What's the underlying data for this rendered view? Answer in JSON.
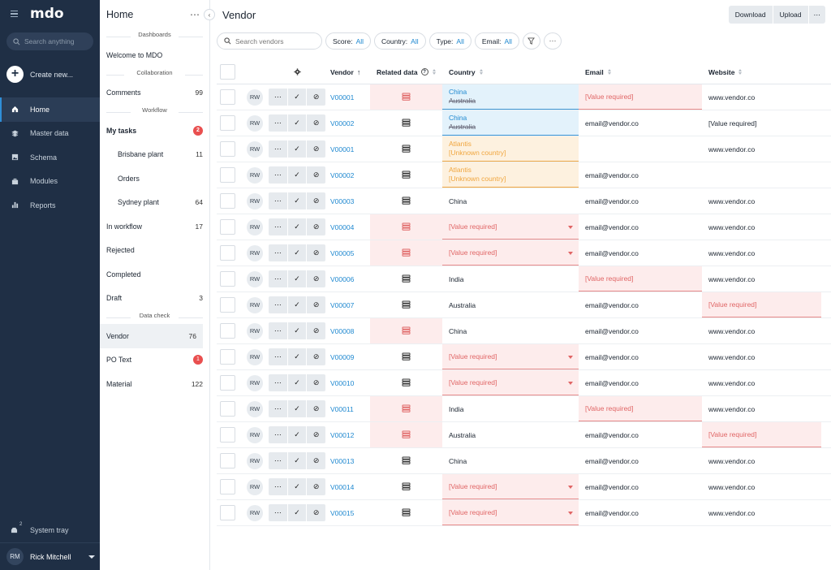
{
  "nav": {
    "logo": "mdo",
    "search_placeholder": "Search anything",
    "create_label": "Create new...",
    "items": [
      {
        "label": "Home",
        "icon": "home-icon",
        "active": true
      },
      {
        "label": "Master data",
        "icon": "layers-icon"
      },
      {
        "label": "Schema",
        "icon": "image-icon"
      },
      {
        "label": "Modules",
        "icon": "briefcase-icon"
      },
      {
        "label": "Reports",
        "icon": "bar-chart-icon"
      }
    ],
    "tray_label": "System tray",
    "tray_count": "2",
    "user_initials": "RM",
    "user_name": "Rick Mitchell"
  },
  "panel": {
    "title": "Home",
    "sections": {
      "dashboards": "Dashboards",
      "collaboration": "Collaboration",
      "workflow": "Workflow",
      "datacheck": "Data check"
    },
    "welcome": "Welcome to MDO",
    "comments": {
      "label": "Comments",
      "count": "99"
    },
    "my_tasks": {
      "label": "My tasks",
      "badge": "2"
    },
    "brisbane": {
      "label": "Brisbane plant",
      "count": "11"
    },
    "orders": {
      "label": "Orders"
    },
    "sydney": {
      "label": "Sydney plant",
      "count": "64"
    },
    "in_workflow": {
      "label": "In workflow",
      "count": "17"
    },
    "rejected": {
      "label": "Rejected"
    },
    "completed": {
      "label": "Completed"
    },
    "draft": {
      "label": "Draft",
      "count": "3"
    },
    "vendor": {
      "label": "Vendor",
      "count": "76"
    },
    "po_text": {
      "label": "PO Text",
      "badge": "1"
    },
    "material": {
      "label": "Material",
      "count": "122"
    }
  },
  "main": {
    "title": "Vendor",
    "download": "Download",
    "upload": "Upload",
    "search_placeholder": "Search vendors",
    "filters": [
      {
        "label": "Score:",
        "value": "All"
      },
      {
        "label": "Country:",
        "value": "All"
      },
      {
        "label": "Type:",
        "value": "All"
      },
      {
        "label": "Email:",
        "value": "All"
      }
    ]
  },
  "columns": {
    "vendor": "Vendor",
    "related": "Related data",
    "country": "Country",
    "email": "Email",
    "website": "Website"
  },
  "rows": [
    {
      "avatar": "RW",
      "vendor": "V00001",
      "rel_err": true,
      "country_type": "blue",
      "country_new": "China",
      "country_old": "Australia",
      "email": "[Value required]",
      "email_err": true,
      "website": "www.vendor.co",
      "web_err": false
    },
    {
      "avatar": "RW",
      "vendor": "V00002",
      "rel_err": false,
      "country_type": "blue",
      "country_new": "China",
      "country_old": "Australia",
      "email": "email@vendor.co",
      "email_err": false,
      "website": "[Value required]",
      "web_err": false
    },
    {
      "avatar": "RW",
      "vendor": "V00001",
      "rel_err": false,
      "country_type": "orange",
      "country_new": "Atlantis",
      "country_old": "[Unknown country]",
      "email": "",
      "email_err": false,
      "website": "www.vendor.co",
      "web_err": false
    },
    {
      "avatar": "RW",
      "vendor": "V00002",
      "rel_err": false,
      "country_type": "orange",
      "country_new": "Atlantis",
      "country_old": "[Unknown country]",
      "email": "email@vendor.co",
      "email_err": false,
      "website": "",
      "web_err": false
    },
    {
      "avatar": "RW",
      "vendor": "V00003",
      "rel_err": false,
      "country_type": "plain",
      "country": "China",
      "email": "email@vendor.co",
      "email_err": false,
      "website": "www.vendor.co",
      "web_err": false
    },
    {
      "avatar": "RW",
      "vendor": "V00004",
      "rel_err": true,
      "country_type": "err",
      "country": "[Value required]",
      "email": "email@vendor.co",
      "email_err": false,
      "website": "www.vendor.co",
      "web_err": false
    },
    {
      "avatar": "RW",
      "vendor": "V00005",
      "rel_err": true,
      "country_type": "err",
      "country": "[Value required]",
      "email": "email@vendor.co",
      "email_err": false,
      "website": "www.vendor.co",
      "web_err": false
    },
    {
      "avatar": "RW",
      "vendor": "V00006",
      "rel_err": false,
      "country_type": "plain",
      "country": "India",
      "email": "[Value required]",
      "email_err": true,
      "website": "www.vendor.co",
      "web_err": false
    },
    {
      "avatar": "RW",
      "vendor": "V00007",
      "rel_err": false,
      "country_type": "plain",
      "country": "Australia",
      "email": "email@vendor.co",
      "email_err": false,
      "website": "[Value required]",
      "web_err": true
    },
    {
      "avatar": "RW",
      "vendor": "V00008",
      "rel_err": true,
      "country_type": "plain",
      "country": "China",
      "email": "email@vendor.co",
      "email_err": false,
      "website": "www.vendor.co",
      "web_err": false
    },
    {
      "avatar": "RW",
      "vendor": "V00009",
      "rel_err": false,
      "country_type": "err",
      "country": "[Value required]",
      "email": "email@vendor.co",
      "email_err": false,
      "website": "www.vendor.co",
      "web_err": false
    },
    {
      "avatar": "RW",
      "vendor": "V00010",
      "rel_err": false,
      "country_type": "err",
      "country": "[Value required]",
      "email": "email@vendor.co",
      "email_err": false,
      "website": "www.vendor.co",
      "web_err": false
    },
    {
      "avatar": "RW",
      "vendor": "V00011",
      "rel_err": true,
      "country_type": "plain",
      "country": "India",
      "email": "[Value required]",
      "email_err": true,
      "website": "www.vendor.co",
      "web_err": false
    },
    {
      "avatar": "RW",
      "vendor": "V00012",
      "rel_err": true,
      "country_type": "plain",
      "country": "Australia",
      "email": "email@vendor.co",
      "email_err": false,
      "website": "[Value required]",
      "web_err": true
    },
    {
      "avatar": "RW",
      "vendor": "V00013",
      "rel_err": false,
      "country_type": "plain",
      "country": "China",
      "email": "email@vendor.co",
      "email_err": false,
      "website": "www.vendor.co",
      "web_err": false
    },
    {
      "avatar": "RW",
      "vendor": "V00014",
      "rel_err": false,
      "country_type": "err",
      "country": "[Value required]",
      "email": "email@vendor.co",
      "email_err": false,
      "website": "www.vendor.co",
      "web_err": false
    },
    {
      "avatar": "RW",
      "vendor": "V00015",
      "rel_err": false,
      "country_type": "err",
      "country": "[Value required]",
      "email": "email@vendor.co",
      "email_err": false,
      "website": "www.vendor.co",
      "web_err": false
    }
  ],
  "colors": {
    "nav_bg": "#1f2f45",
    "accent": "#1e88d0",
    "error": "#e06565",
    "warning": "#f0a63f",
    "badge": "#e94f4f"
  }
}
